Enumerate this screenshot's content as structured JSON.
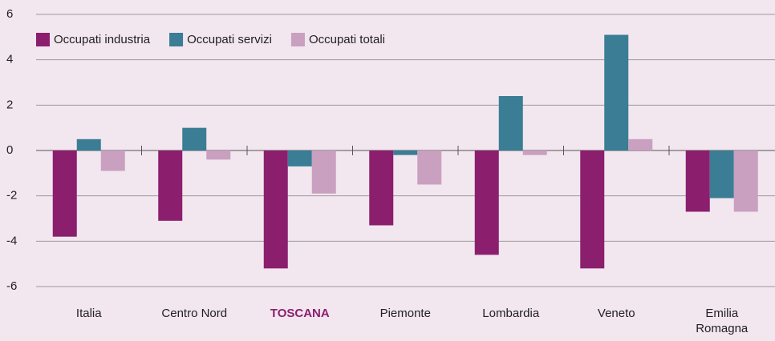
{
  "chart_data": {
    "type": "bar",
    "categories": [
      "Italia",
      "Centro Nord",
      "TOSCANA",
      "Piemonte",
      "Lombardia",
      "Veneto",
      "Emilia Romagna"
    ],
    "series": [
      {
        "name": "Occupati industria",
        "color": "#8b1f6e",
        "values": [
          -3.8,
          -3.1,
          -5.2,
          -3.3,
          -4.6,
          -5.2,
          -2.7
        ]
      },
      {
        "name": "Occupati servizi",
        "color": "#3a7d94",
        "values": [
          0.5,
          1.0,
          -0.7,
          -0.2,
          2.4,
          5.1,
          -2.1
        ]
      },
      {
        "name": "Occupati totali",
        "color": "#c9a0bf",
        "values": [
          -0.9,
          -0.4,
          -1.9,
          -1.5,
          -0.2,
          0.5,
          -2.7
        ]
      }
    ],
    "ylim": [
      -6,
      6
    ],
    "yticks": [
      -6,
      -4,
      -2,
      0,
      2,
      4,
      6
    ],
    "grid": true,
    "legend": "top-left",
    "highlight": {
      "index": 2,
      "color": "#8b1f6e"
    }
  }
}
